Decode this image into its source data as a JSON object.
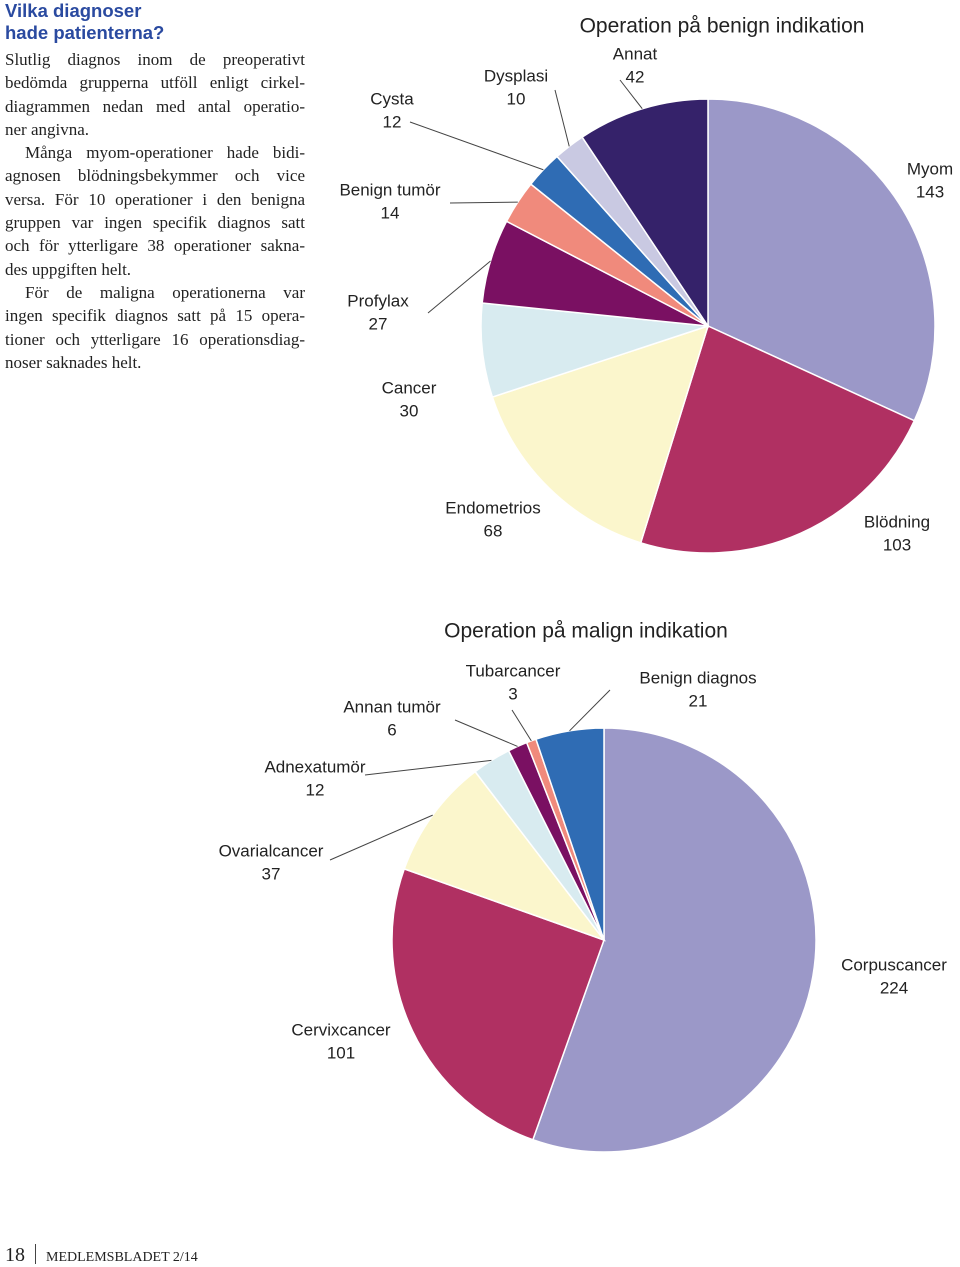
{
  "heading": [
    "Vilka diagnoser",
    "hade patienterna?"
  ],
  "paragraphs": [
    [
      "Slutlig diagnos inom de preoperativt",
      "bedömda grupperna utföll enligt cirkel-",
      "diagrammen nedan med antal operatio-",
      "ner angivna."
    ],
    [
      "Många myom-operationer hade bidi-",
      "agnosen blödningsbekymmer och vice",
      "versa. För 10 operationer i den benigna",
      "gruppen var ingen specifik diagnos satt",
      "och för ytterligare 38 operationer sakna-",
      "des uppgiften helt."
    ],
    [
      "För de maligna operationerna var",
      "ingen specifik diagnos satt på 15 opera-",
      "tioner och ytterligare 16 operationsdiag-",
      "noser saknades helt."
    ]
  ],
  "chart_data": [
    {
      "type": "pie",
      "title": "Operation på benign indikation",
      "categories": [
        "Myom",
        "Blödning",
        "Endometrios",
        "Cancer",
        "Profylax",
        "Benign tumör",
        "Cysta",
        "Dysplasi",
        "Annat"
      ],
      "values": [
        143,
        103,
        68,
        30,
        27,
        14,
        12,
        10,
        42
      ],
      "colors": [
        "#9b98c8",
        "#b03062",
        "#fbf6cc",
        "#d8ebf0",
        "#7a1062",
        "#f08a7c",
        "#2f6cb4",
        "#c9c9e2",
        "#35226a"
      ]
    },
    {
      "type": "pie",
      "title": "Operation på malign indikation",
      "categories": [
        "Corpuscancer",
        "Cervixcancer",
        "Ovarialcancer",
        "Adnexatumör",
        "Annan tumör",
        "Tubarcancer",
        "Benign diagnos"
      ],
      "values": [
        224,
        101,
        37,
        12,
        6,
        3,
        21
      ],
      "colors": [
        "#9b98c8",
        "#b03062",
        "#fbf6cc",
        "#d8ebf0",
        "#7a1062",
        "#f08a7c",
        "#2f6cb4"
      ]
    }
  ],
  "footer": {
    "page": "18",
    "publication": "MEDLEMSBLADET 2/14"
  }
}
